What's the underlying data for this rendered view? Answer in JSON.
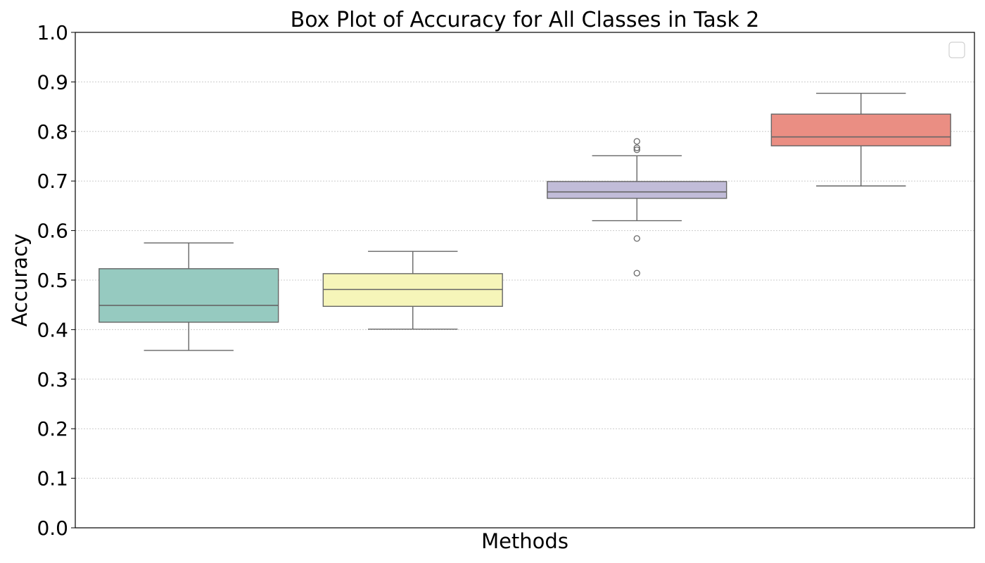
{
  "chart_data": {
    "type": "box",
    "title": "Box Plot of Accuracy for All Classes in Task 2",
    "xlabel": "Methods",
    "ylabel": "Accuracy",
    "ylim": [
      0.0,
      1.0
    ],
    "yticks": [
      "0.0",
      "0.1",
      "0.2",
      "0.3",
      "0.4",
      "0.5",
      "0.6",
      "0.7",
      "0.8",
      "0.9",
      "1.0"
    ],
    "grid": "y",
    "legend": "empty, top-right",
    "boxes": [
      {
        "color": "#96cac0",
        "whisker_low": 0.358,
        "q1": 0.415,
        "median": 0.449,
        "q3": 0.523,
        "whisker_high": 0.575,
        "outliers": []
      },
      {
        "color": "#f6f5b9",
        "whisker_low": 0.401,
        "q1": 0.447,
        "median": 0.481,
        "q3": 0.513,
        "whisker_high": 0.558,
        "outliers": []
      },
      {
        "color": "#c1bcd8",
        "whisker_low": 0.62,
        "q1": 0.665,
        "median": 0.678,
        "q3": 0.699,
        "whisker_high": 0.751,
        "outliers": [
          0.78,
          0.767,
          0.763,
          0.584,
          0.514
        ]
      },
      {
        "color": "#ea8e83",
        "whisker_low": 0.69,
        "q1": 0.771,
        "median": 0.789,
        "q3": 0.835,
        "whisker_high": 0.877,
        "outliers": []
      }
    ]
  }
}
